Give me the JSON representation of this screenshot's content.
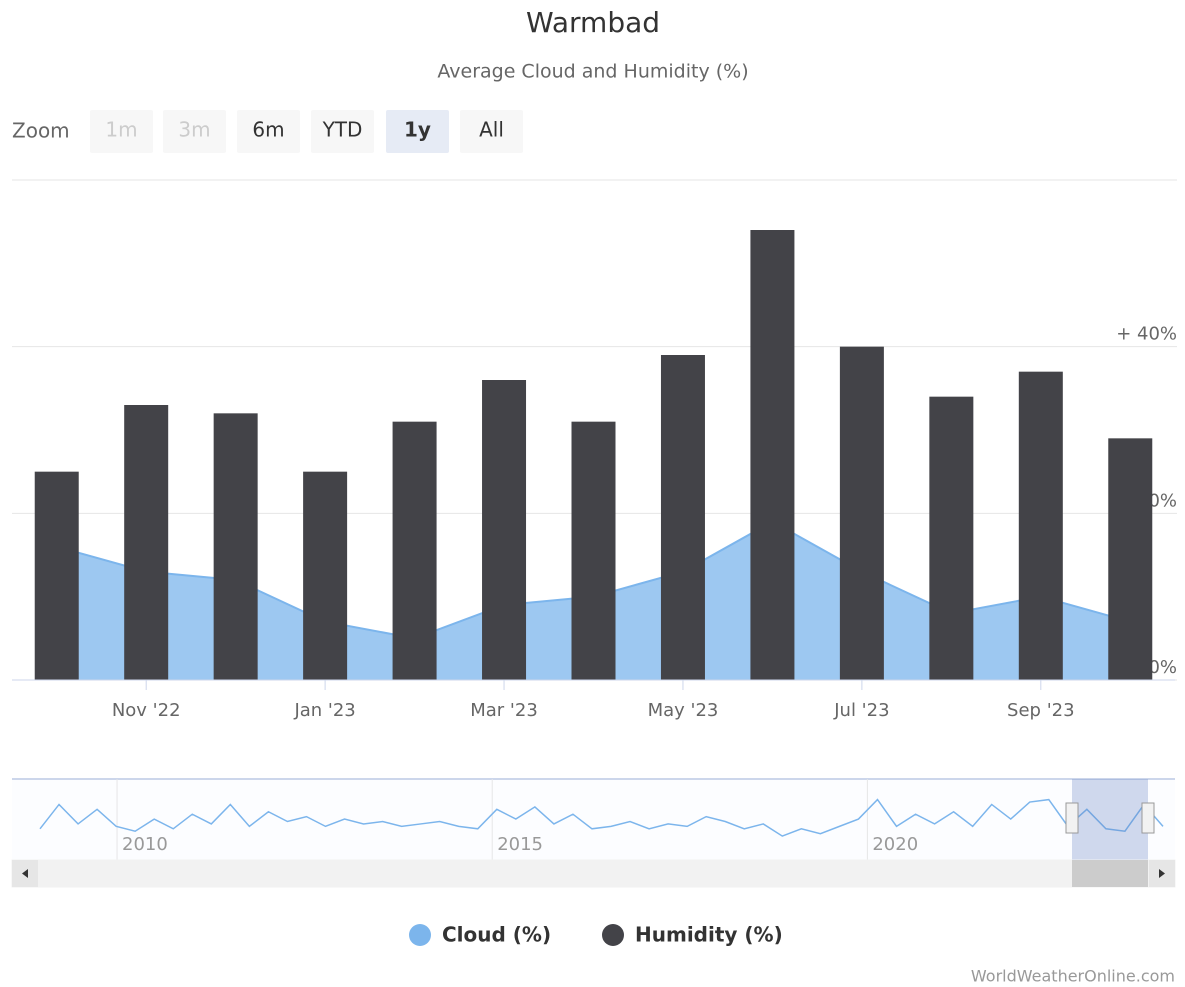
{
  "chart_data": {
    "type": "bar-area",
    "title": "Warmbad",
    "subtitle": "Average Cloud and Humidity (%)",
    "zoom": {
      "label": "Zoom",
      "buttons": [
        "1m",
        "3m",
        "6m",
        "YTD",
        "1y",
        "All"
      ],
      "disabled": [
        "1m",
        "3m"
      ],
      "selected": "1y"
    },
    "categories": [
      null,
      "Nov '22",
      null,
      "Jan '23",
      null,
      "Mar '23",
      null,
      "May '23",
      null,
      "Jul '23",
      null,
      "Sep '23",
      null
    ],
    "series": [
      {
        "name": "Cloud (%)",
        "type": "area",
        "color": "#7cb5ec",
        "values": [
          16,
          13,
          12,
          7,
          5,
          9,
          10,
          13,
          19,
          13,
          8,
          10,
          7
        ]
      },
      {
        "name": "Humidity (%)",
        "type": "bar",
        "color": "#434348",
        "values": [
          25,
          33,
          32,
          25,
          31,
          36,
          31,
          39,
          54,
          40,
          34,
          37,
          29
        ]
      }
    ],
    "ylim": [
      0,
      60
    ],
    "yticks": [
      {
        "value": 0,
        "label": "0%"
      },
      {
        "value": 20,
        "label": "+ 20%"
      },
      {
        "value": 40,
        "label": "+ 40%"
      }
    ],
    "grid": true,
    "navigator": {
      "xlim": [
        2008.6,
        2024.1
      ],
      "xticks": [
        2010,
        2015,
        2020
      ],
      "ylim": [
        0,
        30
      ],
      "values": [
        12,
        22,
        14,
        20,
        13,
        11,
        16,
        12,
        18,
        14,
        22,
        13,
        19,
        15,
        17,
        13,
        16,
        14,
        15,
        13,
        14,
        15,
        13,
        12,
        20,
        16,
        21,
        14,
        18,
        12,
        13,
        15,
        12,
        14,
        13,
        17,
        15,
        12,
        14,
        9,
        12,
        10,
        13,
        16,
        24,
        13,
        18,
        14,
        19,
        13,
        22,
        16,
        23,
        24,
        13,
        20,
        12,
        11,
        22,
        13
      ],
      "color": "#7cb5ec"
    },
    "legend_position": "bottom",
    "credits": "WorldWeatherOnline.com"
  }
}
